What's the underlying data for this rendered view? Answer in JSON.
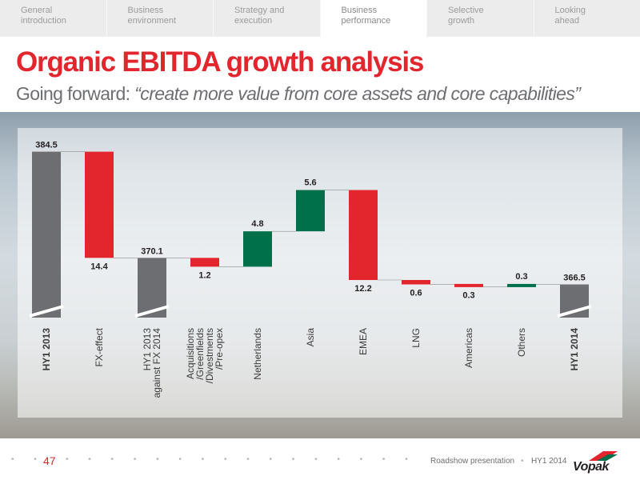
{
  "nav": {
    "items": [
      {
        "label": "General\nintroduction"
      },
      {
        "label": "Business\nenvironment"
      },
      {
        "label": "Strategy and\nexecution"
      },
      {
        "label": "Business\nperformance"
      },
      {
        "label": "Selective\ngrowth"
      },
      {
        "label": "Looking\nahead"
      }
    ],
    "active_index": 3
  },
  "title": "Organic EBITDA growth analysis",
  "subtitle": {
    "prefix": "Going forward: ",
    "quote": "“create more value from core assets and core capabilities”"
  },
  "chart_data": {
    "type": "waterfall",
    "categories": [
      "HY1 2013",
      "FX-effect",
      "HY1 2013 against FX 2014",
      "Acquisitions /Greenfields /Divestments /Pre-opex",
      "Netherlands",
      "Asia",
      "EMEA",
      "LNG",
      "Americas",
      "Others",
      "HY1 2014"
    ],
    "category_lines": [
      [
        "HY1 2013"
      ],
      [
        "FX-effect"
      ],
      [
        "HY1 2013",
        "against FX 2014"
      ],
      [
        "Acquisitions",
        "/Greenfields",
        "/Divestments",
        "/Pre-opex"
      ],
      [
        "Netherlands"
      ],
      [
        "Asia"
      ],
      [
        "EMEA"
      ],
      [
        "LNG"
      ],
      [
        "Americas"
      ],
      [
        "Others"
      ],
      [
        "HY1 2014"
      ]
    ],
    "bold_categories": [
      "HY1 2013",
      "HY1 2014"
    ],
    "kinds": [
      "total",
      "decrease",
      "total",
      "decrease",
      "increase",
      "increase",
      "decrease",
      "decrease",
      "decrease",
      "increase",
      "total"
    ],
    "values": [
      384.5,
      14.4,
      370.1,
      1.2,
      4.8,
      5.6,
      12.2,
      0.6,
      0.3,
      0.3,
      366.5
    ],
    "data_labels": [
      "384.5",
      "14.4",
      "370.1",
      "1.2",
      "4.8",
      "5.6",
      "12.2",
      "0.6",
      "0.3",
      "0.3",
      "366.5"
    ],
    "colors": {
      "total": "#6d6e71",
      "increase": "#00704a",
      "decrease": "#e3262e"
    },
    "axis_break": true
  },
  "footer": {
    "page_number": "47",
    "text": "Roadshow presentation",
    "period": "HY1 2014",
    "logo_text": "Vopak",
    "dots": "• • • • • • • • • • • • • • • • • • • • • • • • • • • • • • • • • • • • • • • • •",
    "separator": "•"
  }
}
